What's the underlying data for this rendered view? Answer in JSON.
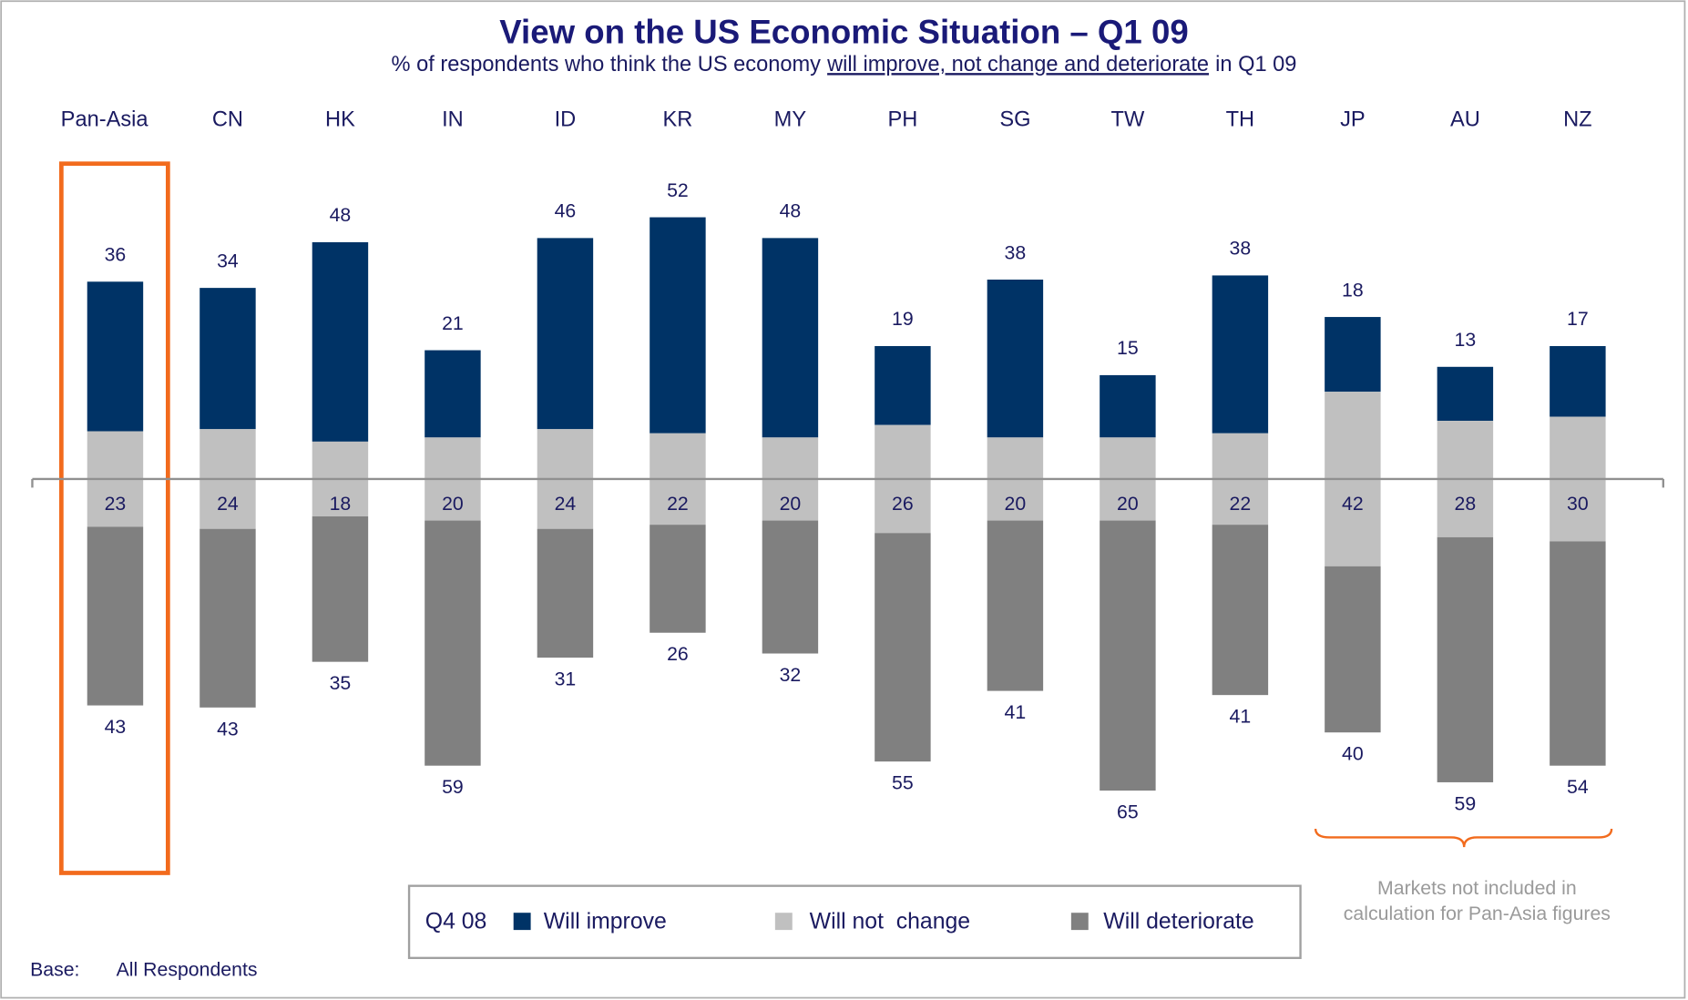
{
  "chart_data": {
    "type": "diverging_bar",
    "title": "View on the US Economic Situation – Q1 09",
    "subtitle": [
      "% of respondents who think the US economy",
      "will improve, not change and deteriorate",
      "in Q1 09"
    ],
    "categories": [
      "Pan-Asia",
      "CN",
      "HK",
      "IN",
      "ID",
      "KR",
      "MY",
      "PH",
      "SG",
      "TW",
      "TH",
      "JP",
      "AU",
      "NZ"
    ],
    "series": [
      {
        "name": "Will improve",
        "color": "#003366",
        "values": [
          36,
          34,
          48,
          21,
          46,
          52,
          48,
          19,
          38,
          15,
          38,
          18,
          13,
          17
        ]
      },
      {
        "name": "Will not  change",
        "color": "#c0c0c0",
        "values": [
          23,
          24,
          18,
          20,
          24,
          22,
          20,
          26,
          20,
          20,
          22,
          42,
          28,
          30
        ]
      },
      {
        "name": "Will deteriorate",
        "color": "#808080",
        "values": [
          43,
          43,
          35,
          59,
          31,
          26,
          32,
          55,
          41,
          65,
          41,
          40,
          59,
          54
        ]
      }
    ],
    "legend_title": "Q4 08",
    "annotation": [
      "Markets not included in",
      "calculation for Pan-Asia figures"
    ],
    "base_label": "Base:",
    "base_text": "All Respondents"
  }
}
